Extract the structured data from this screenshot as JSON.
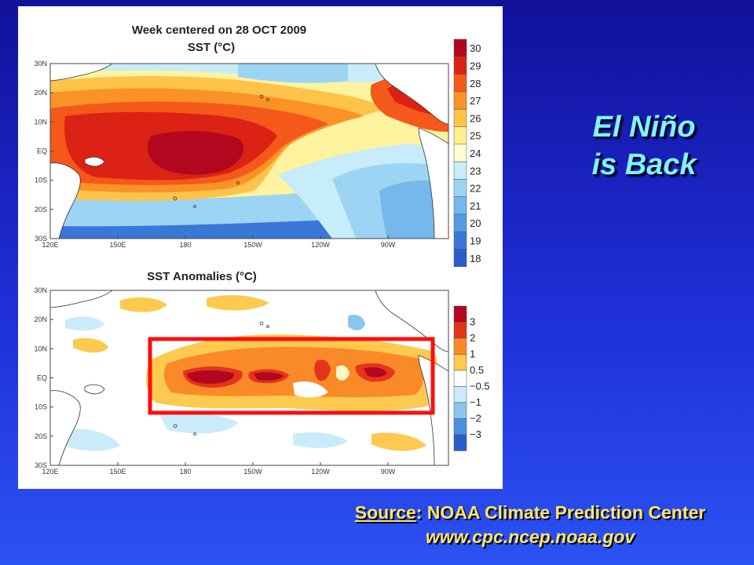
{
  "sst_map": {
    "title_line1": "Week centered on 28 OCT 2009",
    "title_line2": "SST (°C)",
    "lat_labels": [
      "30N",
      "20N",
      "10N",
      "EQ",
      "10S",
      "20S",
      "30S"
    ],
    "lon_labels": [
      "120E",
      "150E",
      "180",
      "150W",
      "120W",
      "90W"
    ],
    "colorbar_labels": [
      "30",
      "29",
      "28",
      "27",
      "26",
      "25",
      "24",
      "23",
      "22",
      "21",
      "20",
      "19",
      "18"
    ],
    "colorbar_colors": [
      "#b2071f",
      "#dc2215",
      "#f4581b",
      "#fb9226",
      "#fdc34a",
      "#fff18e",
      "#fffdd3",
      "#c7ecfa",
      "#9cd4f4",
      "#74b8ec",
      "#559ae2",
      "#3a78d7",
      "#2a5dca"
    ]
  },
  "anomaly_map": {
    "title": "SST Anomalies (°C)",
    "lat_labels": [
      "30N",
      "20N",
      "10N",
      "EQ",
      "10S",
      "20S",
      "30S"
    ],
    "lon_labels": [
      "120E",
      "150E",
      "180",
      "150W",
      "120W",
      "90W"
    ],
    "colorbar_labels": [
      "3",
      "2",
      "1",
      "0.5",
      "−0.5",
      "−1",
      "−2",
      "−3"
    ],
    "colorbar_colors": [
      "#b2071f",
      "#e4341c",
      "#fa8a27",
      "#fdc94e",
      "#ffffff",
      "#c9ebfa",
      "#8bc5ef",
      "#4b8fde",
      "#2a5dca"
    ],
    "highlight_color": "#ff0d0d"
  },
  "slide": {
    "title_line1": "El Niño",
    "title_line2": "is  Back",
    "source_label": "Source",
    "source_text": ":  NOAA Climate Prediction Center",
    "source_url": "www.cpc.ncep.noaa.gov"
  }
}
